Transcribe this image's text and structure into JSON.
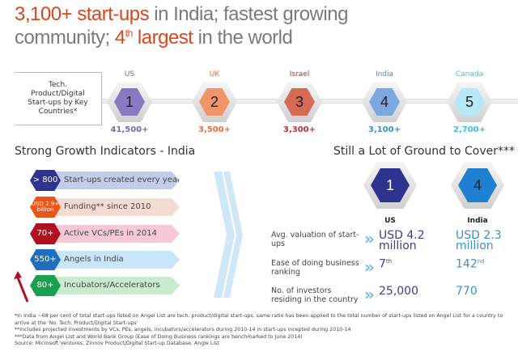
{
  "title": {
    "line1_hl": "3,100+ start-ups",
    "line1_rest": " in India; fastest growing",
    "line2_a": "community; ",
    "line2_hl": "4",
    "line2_sup": "th",
    "line2_hl2": " largest",
    "line2_rest": " in the world"
  },
  "countries_label": "Tech. Product/Digital Start-ups by Key Countries*",
  "countries": [
    {
      "name": "US",
      "rank": "1",
      "value": "41,500+",
      "color": "#7a68b0",
      "hex": "#8a78c0"
    },
    {
      "name": "UK",
      "rank": "2",
      "value": "3,500+",
      "color": "#e0703a",
      "hex": "#f0956a"
    },
    {
      "name": "Israel",
      "rank": "3",
      "value": "3,300+",
      "color": "#b8303a",
      "hex": "#d56a55"
    },
    {
      "name": "India",
      "rank": "4",
      "value": "3,100+",
      "color": "#3a8fcf",
      "hex": "#7ca8e0"
    },
    {
      "name": "Canada",
      "rank": "5",
      "value": "2,700+",
      "color": "#3ac0e0",
      "hex": "#b8e8f5"
    }
  ],
  "growth": {
    "title": "Strong Growth Indicators - India",
    "items": [
      {
        "value": "> 800",
        "label": "Start-ups created every year",
        "hex": "#2e3390",
        "band": "#c3cdea"
      },
      {
        "value": "USD 2.9+ billion",
        "label": "Funding** since 2010",
        "hex": "#e8561c",
        "band": "#f5dcd2"
      },
      {
        "value": "70+",
        "label": "Active VCs/PEs in 2014",
        "hex": "#b01020",
        "band": "#f7c9d6"
      },
      {
        "value": "550+",
        "label": "Angels in India",
        "hex": "#1f6fc0",
        "band": "#c9e6f8"
      },
      {
        "value": "80+",
        "label": "Incubators/Accelerators",
        "hex": "#1aa050",
        "band": "#c9ebcf"
      }
    ]
  },
  "compare": {
    "title": "Still a Lot of Ground to Cover***",
    "us": {
      "name": "US",
      "rank": "1"
    },
    "india": {
      "name": "India",
      "rank": "4"
    },
    "rows": [
      {
        "label": "Avg. valuation of start-ups",
        "us": "USD 4.2 million",
        "india": "USD 2.3 million"
      },
      {
        "label": "Ease of doing business ranking",
        "us": "7",
        "us_sup": "th",
        "india": "142",
        "india_sup": "nd"
      },
      {
        "label": "No. of investors residing in the country",
        "us": "25,000",
        "india": "770"
      }
    ]
  },
  "footnotes": [
    "*In India ~68 per cent of total start-ups listed on Angel List are tech. product/digital start-ups, same ratio has been applied to the total number of start-ups listed on Angel List for a country to arrive at the 'No. Tech. Product/Digital Start-ups'",
    "**Includes projected investments by VCs, PEs, angels, incubators/accelerators during 2010-14 in start-ups incepted during 2010-14",
    "***Data from Angel List and World Bank Group (Ease of Doing Business rankings are benchmarked to June 2014)",
    "Source: Microsoft Ventures, Zinnov Product/Digital Start-up Database, Angle List"
  ]
}
